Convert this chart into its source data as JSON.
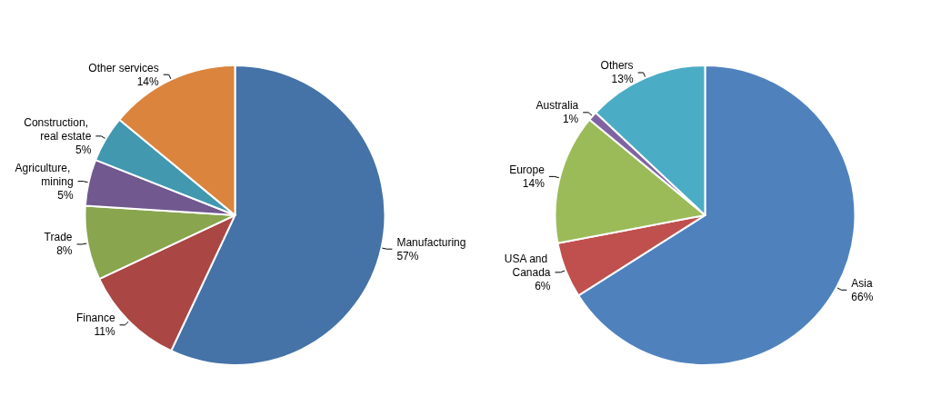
{
  "chart_data": [
    {
      "type": "pie",
      "categories": [
        "Manufacturing",
        "Finance",
        "Trade",
        "Agriculture, mining",
        "Construction, real estate",
        "Other services"
      ],
      "values": [
        57,
        11,
        8,
        5,
        5,
        14
      ],
      "colors": [
        "#4572a7",
        "#aa4643",
        "#89a54e",
        "#71588f",
        "#4198af",
        "#db843d"
      ],
      "value_labels": [
        "57%",
        "11%",
        "8%",
        "5%",
        "5%",
        "14%"
      ]
    },
    {
      "type": "pie",
      "categories": [
        "Asia",
        "USA and Canada",
        "Europe",
        "Australia",
        "Others"
      ],
      "values": [
        66,
        6,
        14,
        1,
        13
      ],
      "colors": [
        "#4f81bd",
        "#c0504d",
        "#9bbb59",
        "#8064a2",
        "#4bacc6"
      ],
      "value_labels": [
        "66%",
        "6%",
        "14%",
        "1%",
        "13%"
      ]
    }
  ]
}
